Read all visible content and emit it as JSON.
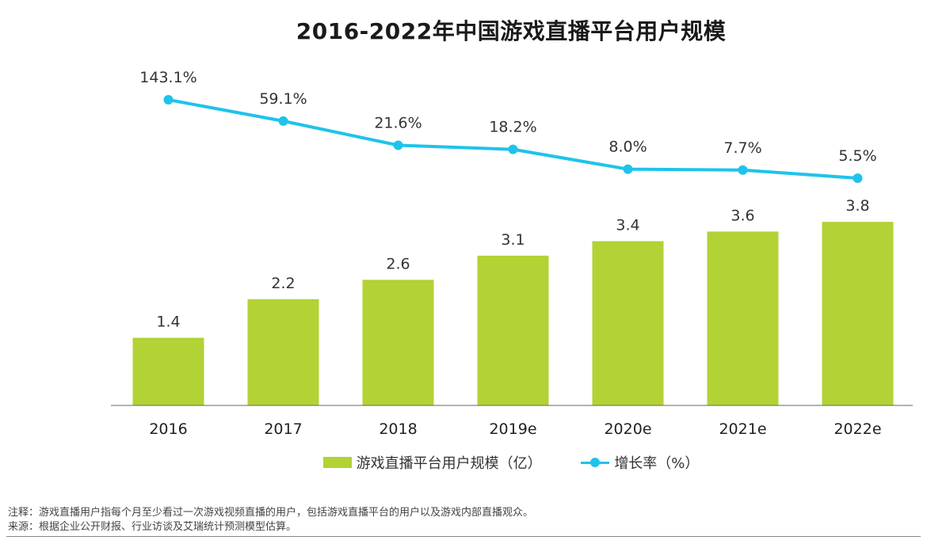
{
  "chart_data": {
    "type": "bar",
    "title": "2016-2022年中国游戏直播平台用户规模",
    "categories": [
      "2016",
      "2017",
      "2018",
      "2019e",
      "2020e",
      "2021e",
      "2022e"
    ],
    "series": [
      {
        "name": "游戏直播平台用户规模（亿）",
        "type": "bar",
        "values": [
          1.4,
          2.2,
          2.6,
          3.1,
          3.4,
          3.6,
          3.8
        ],
        "value_labels": [
          "1.4",
          "2.2",
          "2.6",
          "3.1",
          "3.4",
          "3.6",
          "3.8"
        ],
        "color": "#b2d235"
      },
      {
        "name": "增长率（%）",
        "type": "line",
        "values": [
          143.1,
          59.1,
          21.6,
          18.2,
          8.0,
          7.7,
          5.5
        ],
        "value_labels": [
          "143.1%",
          "59.1%",
          "21.6%",
          "18.2%",
          "8.0%",
          "7.7%",
          "5.5%"
        ],
        "color": "#1fc3ea"
      }
    ],
    "grid": false,
    "legend": "bottom"
  },
  "notes": {
    "note": "注释：游戏直播用户指每个月至少看过一次游戏视频直播的用户，包括游戏直播平台的用户以及游戏内部直播观众。",
    "source": "来源：根据企业公开财报、行业访谈及艾瑞统计预测模型估算。"
  }
}
